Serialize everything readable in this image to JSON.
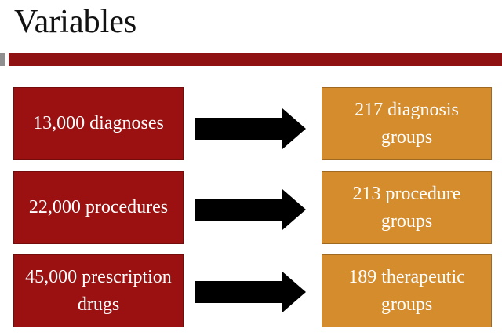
{
  "slide": {
    "title": "Variables"
  },
  "colors": {
    "accent_rule": "#8f1111",
    "left_box": "#9b1111",
    "right_box": "#d58c2c",
    "arrow": "#000000",
    "rule_marker": "#8f8f8f"
  },
  "rows": [
    {
      "source": "13,000 diagnoses",
      "target": "217 diagnosis groups"
    },
    {
      "source": "22,000 procedures",
      "target": "213 procedure groups"
    },
    {
      "source": "45,000 prescription drugs",
      "target": "189 therapeutic groups"
    }
  ]
}
